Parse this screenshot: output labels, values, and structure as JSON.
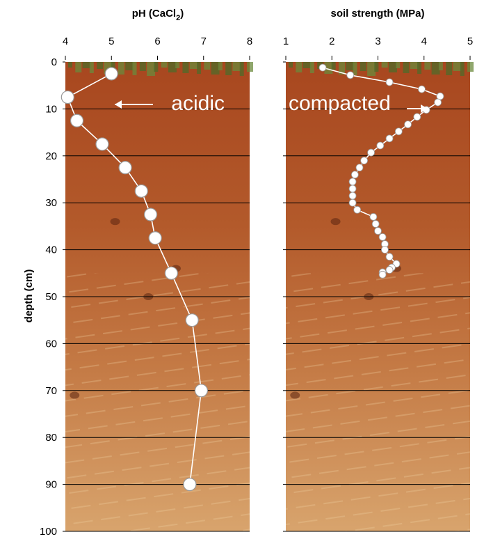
{
  "colors": {
    "soil_top": "#a8471f",
    "soil_mid": "#b66030",
    "soil_bottom": "#d49a62",
    "grass": "#5f7d36",
    "marker": "#ffffff",
    "gridline": "#000000"
  },
  "shared": {
    "ylabel": "depth (cm)",
    "ylim": [
      0,
      100
    ],
    "y_ticks": [
      0,
      10,
      20,
      30,
      40,
      50,
      60,
      70,
      80,
      90,
      100
    ]
  },
  "chart_data": [
    {
      "type": "line",
      "title": "pH (CaCl",
      "title_sub": "2",
      "title_end": ")",
      "xlim": [
        4,
        8
      ],
      "x_ticks": [
        4,
        5,
        6,
        7,
        8
      ],
      "ylabel": "depth (cm)",
      "ylim": [
        0,
        100
      ],
      "annotation": "acidic",
      "series": [
        {
          "x": [
            5.0,
            4.05,
            4.25,
            4.8,
            5.3,
            5.65,
            5.85,
            5.95,
            6.3,
            6.75,
            6.95,
            6.7
          ],
          "y": [
            2.5,
            7.5,
            12.5,
            17.5,
            22.5,
            27.5,
            32.5,
            37.5,
            45,
            55,
            70,
            90
          ]
        }
      ]
    },
    {
      "type": "line",
      "title": "soil strength (MPa)",
      "xlim": [
        1,
        5
      ],
      "x_ticks": [
        1,
        2,
        3,
        4,
        5
      ],
      "ylim": [
        0,
        100
      ],
      "annotation": "compacted",
      "series": [
        {
          "x": [
            1.8,
            2.4,
            3.25,
            3.95,
            4.35,
            4.3,
            4.05,
            3.85,
            3.65,
            3.45,
            3.25,
            3.05,
            2.85,
            2.7,
            2.6,
            2.5,
            2.45,
            2.45,
            2.45,
            2.45,
            2.55,
            2.9,
            2.95,
            3.0,
            3.1,
            3.15,
            3.15,
            3.25,
            3.4,
            3.3,
            3.25,
            3.1,
            3.1
          ],
          "y": [
            1.2,
            2.8,
            4.3,
            5.8,
            7.3,
            8.6,
            10.2,
            11.7,
            13.3,
            14.8,
            16.3,
            17.8,
            19.3,
            21.0,
            22.5,
            24.0,
            25.5,
            27.0,
            28.5,
            30.0,
            31.5,
            33.0,
            34.5,
            36.0,
            37.3,
            38.8,
            40.0,
            41.5,
            43.0,
            43.8,
            44.3,
            44.8,
            45.3
          ]
        }
      ]
    }
  ]
}
